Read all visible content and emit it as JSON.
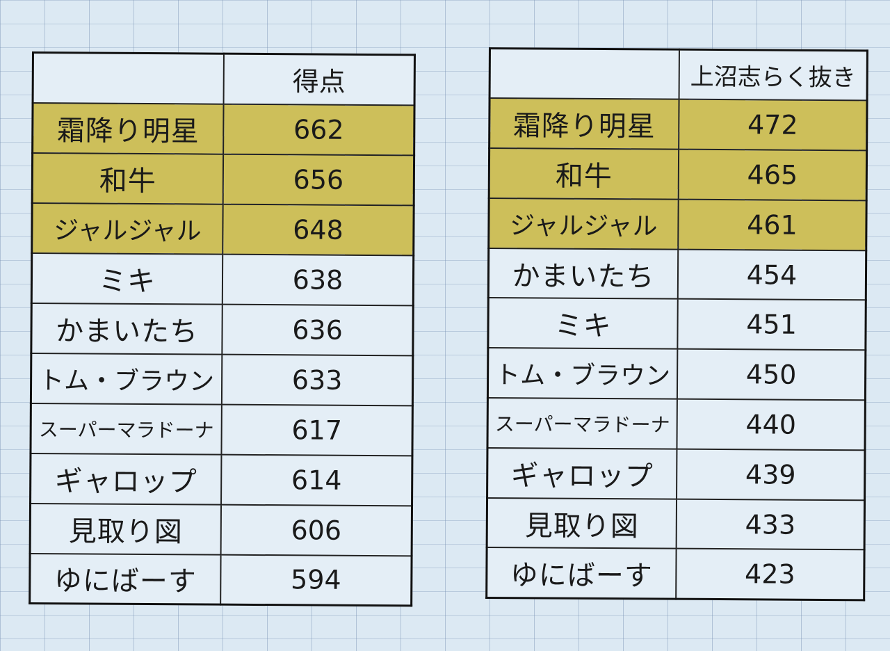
{
  "left_table": {
    "header": {
      "name": "",
      "score": "得点"
    },
    "rows": [
      {
        "name": "霜降り明星",
        "score": "662",
        "highlight": true
      },
      {
        "name": "和牛",
        "score": "656",
        "highlight": true
      },
      {
        "name": "ジャルジャル",
        "score": "648",
        "highlight": true
      },
      {
        "name": "ミキ",
        "score": "638",
        "highlight": false
      },
      {
        "name": "かまいたち",
        "score": "636",
        "highlight": false
      },
      {
        "name": "トム・ブラウン",
        "score": "633",
        "highlight": false
      },
      {
        "name": "スーパーマラドーナ",
        "score": "617",
        "highlight": false
      },
      {
        "name": "ギャロップ",
        "score": "614",
        "highlight": false
      },
      {
        "name": "見取り図",
        "score": "606",
        "highlight": false
      },
      {
        "name": "ゆにばーす",
        "score": "594",
        "highlight": false
      }
    ]
  },
  "right_table": {
    "header": {
      "name": "",
      "score": "上沼志らく抜き"
    },
    "rows": [
      {
        "name": "霜降り明星",
        "score": "472",
        "highlight": true
      },
      {
        "name": "和牛",
        "score": "465",
        "highlight": true
      },
      {
        "name": "ジャルジャル",
        "score": "461",
        "highlight": true
      },
      {
        "name": "かまいたち",
        "score": "454",
        "highlight": false
      },
      {
        "name": "ミキ",
        "score": "451",
        "highlight": false
      },
      {
        "name": "トム・ブラウン",
        "score": "450",
        "highlight": false
      },
      {
        "name": "スーパーマラドーナ",
        "score": "440",
        "highlight": false
      },
      {
        "name": "ギャロップ",
        "score": "439",
        "highlight": false
      },
      {
        "name": "見取り図",
        "score": "433",
        "highlight": false
      },
      {
        "name": "ゆにばーす",
        "score": "423",
        "highlight": false
      }
    ]
  },
  "colors": {
    "highlight": "#cdbf5a",
    "cell_background": "#e4eef6",
    "sheet_background": "#dce9f3",
    "border": "#111111"
  }
}
